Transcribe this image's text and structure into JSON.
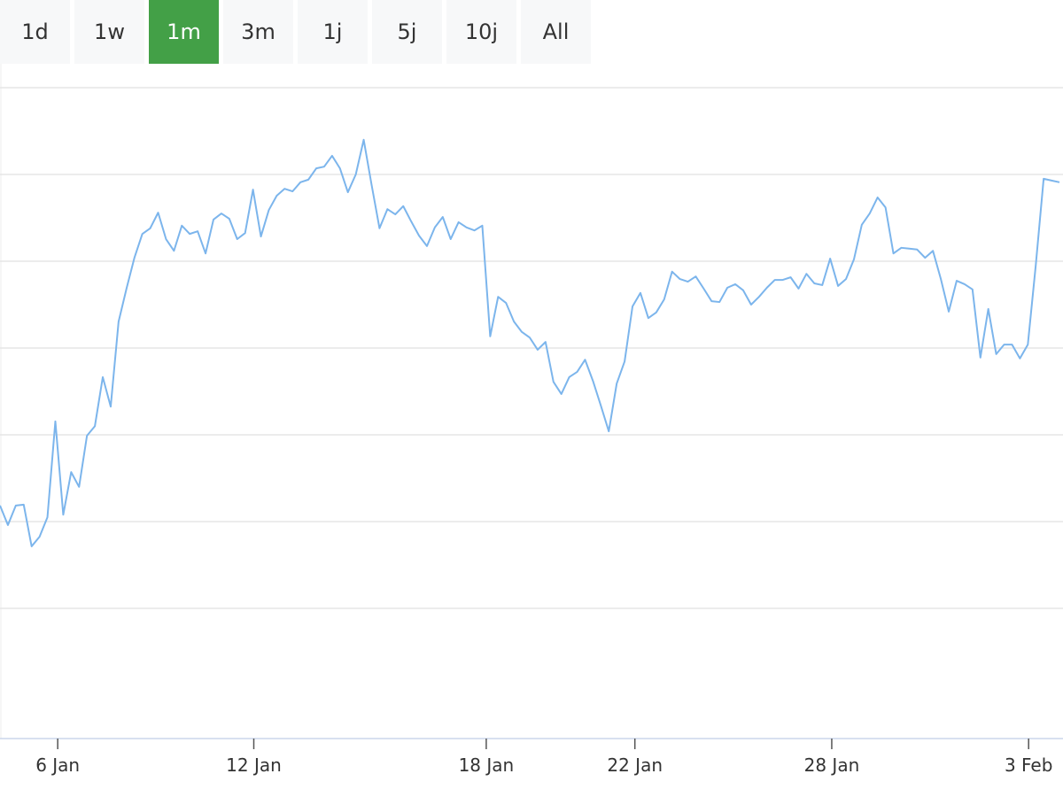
{
  "controls": {
    "range_buttons": [
      "1d",
      "1w",
      "1m",
      "3m",
      "1j",
      "5j",
      "10j",
      "All"
    ],
    "selected": 2
  },
  "chart_data": {
    "type": "line",
    "x": [
      0,
      1,
      2,
      3,
      4,
      5,
      6,
      7,
      8,
      9,
      10,
      11,
      12,
      13,
      14,
      15,
      16,
      17,
      18,
      19,
      20,
      21,
      22,
      23,
      24,
      25,
      26,
      27,
      28,
      29,
      30,
      31,
      32,
      33,
      34,
      35,
      36,
      37,
      38,
      39,
      40,
      41,
      42,
      43,
      44,
      45,
      46,
      47,
      48,
      49,
      50,
      51,
      52,
      53,
      54,
      55,
      56,
      57,
      58,
      59,
      60,
      61,
      62,
      63,
      64,
      65,
      66,
      67,
      68,
      69,
      70,
      71,
      72,
      73,
      74,
      75,
      76,
      77,
      78,
      79,
      80,
      81,
      82,
      83,
      84,
      85,
      86,
      87,
      88,
      89,
      90,
      91,
      92,
      93,
      94,
      95,
      96,
      97,
      98,
      99,
      100,
      101,
      102,
      103,
      104,
      105,
      106,
      107,
      108,
      109,
      110,
      111,
      112,
      113,
      114,
      115,
      116,
      117,
      118,
      119,
      120,
      121,
      122,
      123,
      124,
      125,
      126,
      127,
      128,
      129,
      130,
      131,
      132,
      133,
      134
    ],
    "values": [
      5.37,
      4.92,
      5.37,
      5.39,
      4.43,
      4.65,
      5.1,
      7.31,
      5.16,
      6.14,
      5.8,
      6.98,
      7.2,
      8.33,
      7.65,
      9.61,
      10.37,
      11.08,
      11.63,
      11.76,
      12.12,
      11.51,
      11.24,
      11.82,
      11.63,
      11.69,
      11.18,
      11.96,
      12.1,
      11.98,
      11.51,
      11.65,
      12.65,
      11.57,
      12.18,
      12.51,
      12.67,
      12.61,
      12.82,
      12.88,
      13.14,
      13.18,
      13.43,
      13.14,
      12.59,
      13.0,
      13.8,
      12.76,
      11.76,
      12.2,
      12.08,
      12.27,
      11.92,
      11.59,
      11.35,
      11.78,
      12.02,
      11.51,
      11.9,
      11.78,
      11.71,
      11.82,
      9.27,
      10.18,
      10.04,
      9.61,
      9.37,
      9.24,
      8.96,
      9.14,
      8.22,
      7.94,
      8.33,
      8.45,
      8.73,
      8.24,
      7.67,
      7.08,
      8.18,
      8.69,
      9.96,
      10.27,
      9.69,
      9.82,
      10.12,
      10.76,
      10.59,
      10.53,
      10.65,
      10.37,
      10.08,
      10.06,
      10.39,
      10.47,
      10.33,
      10.0,
      10.18,
      10.39,
      10.57,
      10.57,
      10.63,
      10.37,
      10.71,
      10.49,
      10.45,
      11.06,
      10.43,
      10.59,
      11.04,
      11.84,
      12.1,
      12.47,
      12.24,
      11.18,
      11.31,
      11.29,
      11.27,
      11.08,
      11.24,
      10.59,
      9.84,
      10.55,
      10.47,
      10.35,
      8.78,
      9.9,
      8.86,
      9.08,
      9.08,
      8.76,
      9.08,
      10.9,
      12.9,
      12.86,
      12.82
    ],
    "color": "#7cb5ec",
    "xlim": [
      0,
      134
    ],
    "xticks": [
      {
        "value": 7.3,
        "label": "6 Jan"
      },
      {
        "value": 32.1,
        "label": "12 Jan"
      },
      {
        "value": 61.5,
        "label": "18 Jan"
      },
      {
        "value": 80.3,
        "label": "22 Jan"
      },
      {
        "value": 105.2,
        "label": "28 Jan"
      },
      {
        "value": 130.1,
        "label": "3 Feb"
      }
    ],
    "ylim": [
      0,
      15
    ],
    "yticks": [
      3,
      5,
      7,
      9,
      11,
      13,
      15
    ],
    "grid": true
  }
}
